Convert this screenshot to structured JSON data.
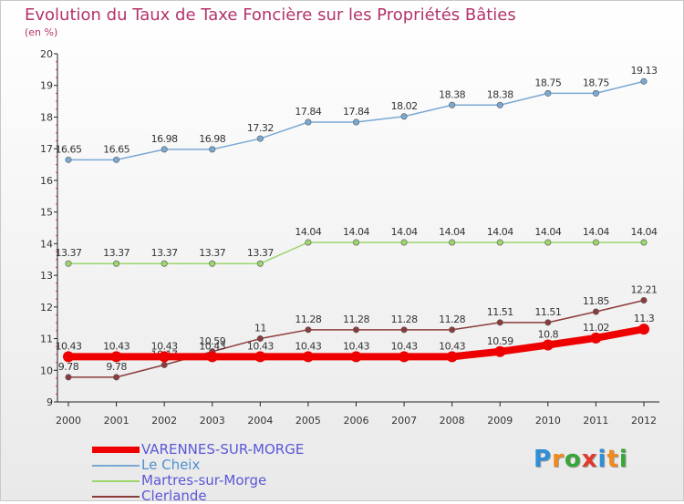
{
  "title": "Evolution du Taux de Taxe Foncière sur les Propriétés Bâties",
  "subtitle": "(en %)",
  "logo": {
    "text": "Proxiti",
    "letters": [
      "P",
      "r",
      "o",
      "x",
      "i",
      "t",
      "i"
    ],
    "colors": [
      "#2e8fd6",
      "#f08a1c",
      "#3aa63a",
      "#e03a2a",
      "#2e8fd6",
      "#f08a1c",
      "#3aa63a"
    ]
  },
  "chart_data": {
    "type": "line",
    "x": [
      "2000",
      "2001",
      "2002",
      "2003",
      "2004",
      "2005",
      "2006",
      "2007",
      "2008",
      "2009",
      "2010",
      "2011",
      "2012"
    ],
    "ylim": [
      9,
      20
    ],
    "yticks": [
      "9",
      "10",
      "11",
      "12",
      "13",
      "14",
      "15",
      "16",
      "17",
      "18",
      "19",
      "20"
    ],
    "grid": false,
    "legend_position": "bottom-left",
    "series": [
      {
        "name": "VARENNES-SUR-MORGE",
        "color": "#ee0000",
        "emphasis": true,
        "values": [
          10.43,
          10.43,
          10.43,
          10.43,
          10.43,
          10.43,
          10.43,
          10.43,
          10.43,
          10.59,
          10.8,
          11.02,
          11.3
        ],
        "labels": [
          "10.43",
          "10.43",
          "10.43",
          "10.43",
          "10.43",
          "10.43",
          "10.43",
          "10.43",
          "10.43",
          "10.59",
          "10.8",
          "11.02",
          "11.3"
        ]
      },
      {
        "name": "Le Cheix",
        "color": "#7aa9d4",
        "values": [
          16.65,
          16.65,
          16.98,
          16.98,
          17.32,
          17.84,
          17.84,
          18.02,
          18.38,
          18.38,
          18.75,
          18.75,
          19.13
        ],
        "labels": [
          "16.65",
          "16.65",
          "16.98",
          "16.98",
          "17.32",
          "17.84",
          "17.84",
          "18.02",
          "18.38",
          "18.38",
          "18.75",
          "18.75",
          "19.13"
        ]
      },
      {
        "name": "Martres-sur-Morge",
        "color": "#9bd66e",
        "values": [
          13.37,
          13.37,
          13.37,
          13.37,
          13.37,
          14.04,
          14.04,
          14.04,
          14.04,
          14.04,
          14.04,
          14.04,
          14.04
        ],
        "labels": [
          "13.37",
          "13.37",
          "13.37",
          "13.37",
          "13.37",
          "14.04",
          "14.04",
          "14.04",
          "14.04",
          "14.04",
          "14.04",
          "14.04",
          "14.04"
        ]
      },
      {
        "name": "Clerlande",
        "color": "#8c3b3b",
        "values": [
          9.78,
          9.78,
          10.17,
          10.59,
          11,
          11.28,
          11.28,
          11.28,
          11.28,
          11.51,
          11.51,
          11.85,
          12.21
        ],
        "labels": [
          "9.78",
          "9.78",
          "10.17",
          "10.59",
          "11",
          "11.28",
          "11.28",
          "11.28",
          "11.28",
          "11.51",
          "11.51",
          "11.85",
          "12.21"
        ]
      }
    ]
  }
}
